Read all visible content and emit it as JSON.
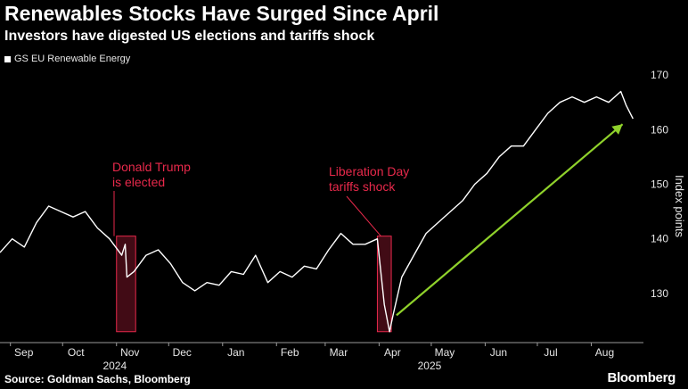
{
  "header": {
    "title": "Renewables Stocks Have Surged Since April",
    "subtitle": "Investors have digested US elections and tariffs shock"
  },
  "footer": {
    "source": "Source: Goldman Sachs, Bloomberg",
    "brand": "Bloomberg"
  },
  "colors": {
    "background": "#000000",
    "line": "#ffffff",
    "annotation": "#e8294b",
    "arrow": "#8fd12b",
    "grid": "#3a3a3a"
  },
  "chart_data": {
    "type": "line",
    "series": [
      {
        "name": "GS EU Renewable Energy",
        "x": [
          "2024-08-26",
          "2024-09-02",
          "2024-09-09",
          "2024-09-16",
          "2024-09-23",
          "2024-09-30",
          "2024-10-07",
          "2024-10-14",
          "2024-10-21",
          "2024-10-28",
          "2024-11-04",
          "2024-11-06",
          "2024-11-07",
          "2024-11-11",
          "2024-11-18",
          "2024-11-25",
          "2024-12-02",
          "2024-12-09",
          "2024-12-16",
          "2024-12-23",
          "2024-12-30",
          "2025-01-06",
          "2025-01-13",
          "2025-01-20",
          "2025-01-27",
          "2025-02-03",
          "2025-02-10",
          "2025-02-17",
          "2025-02-24",
          "2025-03-03",
          "2025-03-10",
          "2025-03-17",
          "2025-03-24",
          "2025-03-31",
          "2025-04-02",
          "2025-04-04",
          "2025-04-07",
          "2025-04-09",
          "2025-04-14",
          "2025-04-21",
          "2025-04-28",
          "2025-05-05",
          "2025-05-12",
          "2025-05-19",
          "2025-05-26",
          "2025-06-02",
          "2025-06-09",
          "2025-06-16",
          "2025-06-23",
          "2025-06-30",
          "2025-07-07",
          "2025-07-14",
          "2025-07-21",
          "2025-07-28",
          "2025-08-04",
          "2025-08-11",
          "2025-08-18",
          "2025-08-21",
          "2025-08-25"
        ],
        "values": [
          137.5,
          140,
          138.5,
          143,
          146,
          145,
          144,
          145,
          142,
          140,
          137,
          139,
          133,
          134,
          137,
          138,
          135.5,
          132,
          130.5,
          132,
          131.5,
          134,
          133.5,
          137,
          132,
          134,
          133,
          135,
          134.5,
          138,
          141,
          139,
          139,
          140,
          134,
          128,
          123,
          126,
          133,
          137,
          141,
          143,
          145,
          147,
          150,
          152,
          155,
          157,
          157,
          160,
          163,
          165,
          166,
          165,
          166,
          165,
          167,
          164.5,
          162
        ]
      }
    ],
    "y_ticks": [
      130,
      140,
      150,
      160,
      170
    ],
    "ylim": [
      121,
      171
    ],
    "ylabel": "Index points",
    "x_tick_labels": [
      "Sep",
      "Oct",
      "Nov",
      "Dec",
      "Jan",
      "Feb",
      "Mar",
      "Apr",
      "May",
      "Jun",
      "Jul",
      "Aug"
    ],
    "x_tick_dates": [
      "2024-09-01",
      "2024-10-01",
      "2024-11-01",
      "2024-12-01",
      "2025-01-01",
      "2025-02-01",
      "2025-03-01",
      "2025-04-01",
      "2025-05-01",
      "2025-06-01",
      "2025-07-01",
      "2025-08-01"
    ],
    "year_labels": [
      {
        "label": "2024",
        "x": "2024-10-31"
      },
      {
        "label": "2025",
        "x": "2025-04-30"
      }
    ],
    "xlim": [
      "2024-08-26",
      "2025-08-31"
    ],
    "legend_position": "top-left",
    "grid": false,
    "annotations": [
      {
        "text": [
          "Donald Trump",
          "is elected"
        ],
        "range": [
          "2024-11-01",
          "2024-11-12"
        ]
      },
      {
        "text": [
          "Liberation Day",
          "tariffs shock"
        ],
        "range": [
          "2025-03-31",
          "2025-04-08"
        ]
      }
    ],
    "trend_arrow": {
      "from": {
        "x": "2025-04-11",
        "y": 126
      },
      "to": {
        "x": "2025-08-19",
        "y": 161
      }
    }
  }
}
